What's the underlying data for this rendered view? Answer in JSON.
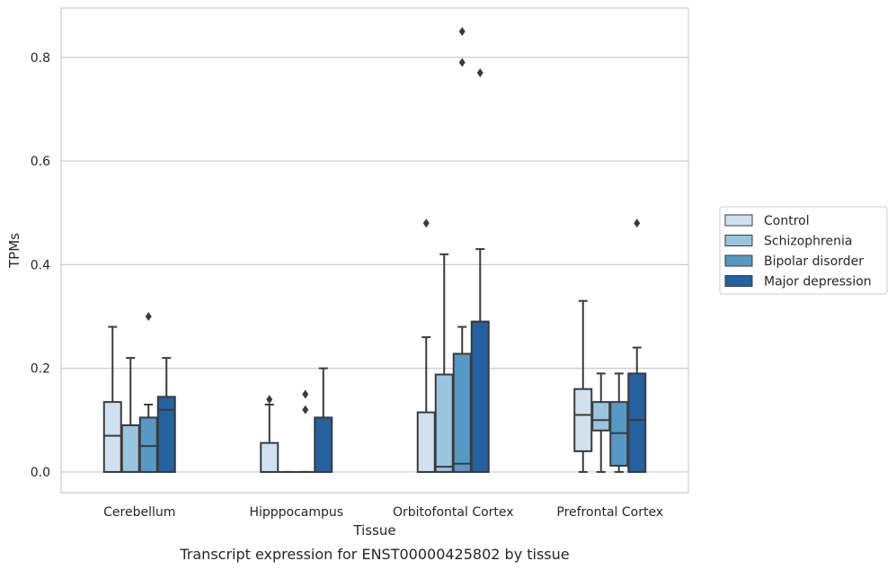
{
  "chart_data": {
    "type": "box",
    "caption": "Transcript expression for ENST00000425802 by tissue",
    "xlabel": "Tissue",
    "ylabel": "TPMs",
    "ylim": [
      -0.04,
      0.895
    ],
    "yticks": [
      0.0,
      0.2,
      0.4,
      0.6,
      0.8
    ],
    "ytick_labels": [
      "0.0",
      "0.2",
      "0.4",
      "0.6",
      "0.8"
    ],
    "grid": "horizontal",
    "legend_position": "right",
    "categories": [
      "Cerebellum",
      "Hipppocampus",
      "Orbitofontal Cortex",
      "Prefrontal Cortex"
    ],
    "series": [
      {
        "name": "Control",
        "color": "#d1e1f0",
        "boxes": [
          {
            "low": 0.0,
            "q1": 0.0,
            "median": 0.07,
            "q3": 0.135,
            "high": 0.28,
            "outliers": []
          },
          {
            "low": 0.0,
            "q1": 0.0,
            "median": 0.0,
            "q3": 0.056,
            "high": 0.13,
            "outliers": [
              0.14
            ]
          },
          {
            "low": 0.0,
            "q1": 0.0,
            "median": 0.0,
            "q3": 0.115,
            "high": 0.26,
            "outliers": [
              0.48
            ]
          },
          {
            "low": 0.0,
            "q1": 0.04,
            "median": 0.11,
            "q3": 0.16,
            "high": 0.33,
            "outliers": []
          }
        ]
      },
      {
        "name": "Schizophrenia",
        "color": "#9ac5de",
        "boxes": [
          {
            "low": 0.0,
            "q1": 0.0,
            "median": 0.09,
            "q3": 0.09,
            "high": 0.22,
            "outliers": []
          },
          {
            "low": 0.0,
            "q1": 0.0,
            "median": 0.0,
            "q3": 0.0,
            "high": 0.0,
            "outliers": []
          },
          {
            "low": 0.0,
            "q1": 0.0,
            "median": 0.01,
            "q3": 0.188,
            "high": 0.42,
            "outliers": []
          },
          {
            "low": 0.0,
            "q1": 0.08,
            "median": 0.1,
            "q3": 0.135,
            "high": 0.19,
            "outliers": []
          }
        ]
      },
      {
        "name": "Bipolar disorder",
        "color": "#5698c6",
        "boxes": [
          {
            "low": 0.0,
            "q1": 0.0,
            "median": 0.05,
            "q3": 0.105,
            "high": 0.13,
            "outliers": [
              0.3
            ]
          },
          {
            "low": 0.0,
            "q1": 0.0,
            "median": 0.0,
            "q3": 0.0,
            "high": 0.0,
            "outliers": [
              0.12,
              0.15
            ]
          },
          {
            "low": 0.0,
            "q1": 0.0,
            "median": 0.016,
            "q3": 0.228,
            "high": 0.28,
            "outliers": [
              0.79,
              0.85
            ]
          },
          {
            "low": 0.0,
            "q1": 0.012,
            "median": 0.075,
            "q3": 0.135,
            "high": 0.19,
            "outliers": []
          }
        ]
      },
      {
        "name": "Major depression",
        "color": "#2361a1",
        "boxes": [
          {
            "low": 0.0,
            "q1": 0.0,
            "median": 0.12,
            "q3": 0.145,
            "high": 0.22,
            "outliers": []
          },
          {
            "low": 0.0,
            "q1": 0.0,
            "median": 0.0,
            "q3": 0.105,
            "high": 0.2,
            "outliers": []
          },
          {
            "low": 0.0,
            "q1": 0.0,
            "median": 0.29,
            "q3": 0.29,
            "high": 0.43,
            "outliers": [
              0.77
            ]
          },
          {
            "low": 0.0,
            "q1": 0.0,
            "median": 0.1,
            "q3": 0.19,
            "high": 0.24,
            "outliers": [
              0.48
            ]
          }
        ]
      }
    ]
  }
}
